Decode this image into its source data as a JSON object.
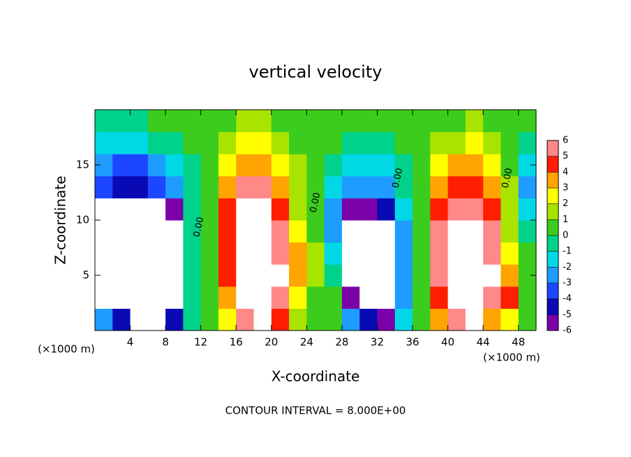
{
  "chart_data": {
    "type": "heatmap",
    "title": "vertical velocity",
    "x_label": "X-coordinate",
    "y_label": "Z-coordinate",
    "x_unit_label": "(×1000 m)",
    "footer": "CONTOUR INTERVAL = 8.000E+00",
    "contour_label": "0.00",
    "x": [
      1,
      3,
      5,
      7,
      9,
      11,
      13,
      15,
      17,
      19,
      21,
      23,
      25,
      27,
      29,
      31,
      33,
      35,
      37,
      39,
      41,
      43,
      45,
      47,
      49
    ],
    "y": [
      1,
      3,
      5,
      7,
      9,
      11,
      13,
      15,
      17,
      19
    ],
    "z": [
      [
        -3,
        -5,
        -7,
        -7,
        -5,
        -1,
        0,
        2,
        5,
        7,
        4,
        1,
        0,
        0,
        -3,
        -5,
        -6,
        -2,
        0,
        3,
        5,
        7,
        3,
        2,
        0
      ],
      [
        -7,
        -8,
        -8,
        -8,
        -7,
        -1,
        0,
        3,
        7,
        8,
        6,
        2,
        0,
        0,
        -6,
        -8,
        -7,
        -3,
        0,
        4,
        7,
        8,
        5,
        4,
        0
      ],
      [
        -7,
        -9,
        -9,
        -8,
        -7,
        -1,
        0,
        4,
        8,
        9,
        7,
        3,
        1,
        -1,
        -7,
        -9,
        -8,
        -3,
        0,
        5,
        8,
        9,
        7,
        3,
        0
      ],
      [
        -7,
        -9,
        -9,
        -9,
        -7,
        -1,
        0,
        4,
        8,
        9,
        6,
        3,
        1,
        -2,
        -7,
        -9,
        -8,
        -3,
        0,
        5,
        8,
        9,
        6,
        2,
        0
      ],
      [
        -7,
        -8,
        -9,
        -8,
        -7,
        -1,
        0,
        4,
        8,
        8,
        5,
        2,
        0,
        -3,
        -7,
        -8,
        -7,
        -3,
        0,
        5,
        8,
        8,
        5,
        1,
        -1
      ],
      [
        -7,
        -7,
        -7,
        -7,
        -6,
        -1,
        0,
        4,
        7,
        7,
        4,
        1,
        0,
        -3,
        -6,
        -6,
        -5,
        -2,
        0,
        4,
        6,
        6,
        4,
        1,
        -2
      ],
      [
        -4,
        -5,
        -5,
        -4,
        -3,
        -1,
        0,
        3,
        5,
        5,
        3,
        1,
        0,
        -2,
        -3,
        -3,
        -3,
        -1,
        0,
        3,
        4,
        4,
        3,
        1,
        -3
      ],
      [
        -3,
        -4,
        -4,
        -3,
        -2,
        -1,
        0,
        2,
        3,
        3,
        2,
        1,
        0,
        -1,
        -2,
        -2,
        -2,
        -1,
        0,
        2,
        3,
        3,
        2,
        0,
        -2
      ],
      [
        -2,
        -2,
        -2,
        -1,
        -1,
        0,
        0,
        1,
        2,
        2,
        1,
        0,
        0,
        0,
        -1,
        -1,
        -1,
        0,
        0,
        1,
        1,
        2,
        1,
        0,
        -1
      ],
      [
        -1,
        -1,
        -1,
        0,
        0,
        0,
        0,
        0,
        1,
        1,
        0,
        0,
        0,
        0,
        0,
        0,
        0,
        0,
        0,
        0,
        0,
        1,
        0,
        0,
        0
      ]
    ],
    "xlim": [
      0,
      50
    ],
    "ylim": [
      0,
      20
    ],
    "xticks": [
      4,
      8,
      12,
      16,
      20,
      24,
      28,
      32,
      36,
      40,
      44,
      48
    ],
    "yticks": [
      5,
      10,
      15
    ],
    "clim": [
      -6,
      6
    ],
    "cticks": [
      -6,
      -5,
      -4,
      -3,
      -2,
      -1,
      0,
      1,
      2,
      3,
      4,
      5,
      6
    ],
    "colors": [
      "#7a00a8",
      "#0a0ab4",
      "#1c46ff",
      "#1e9cff",
      "#00d8e6",
      "#00d28c",
      "#3ccc1e",
      "#a8e400",
      "#ffff00",
      "#ffa400",
      "#ff1e00",
      "#ff8888"
    ],
    "out_of_range_color": "#ffffff"
  }
}
